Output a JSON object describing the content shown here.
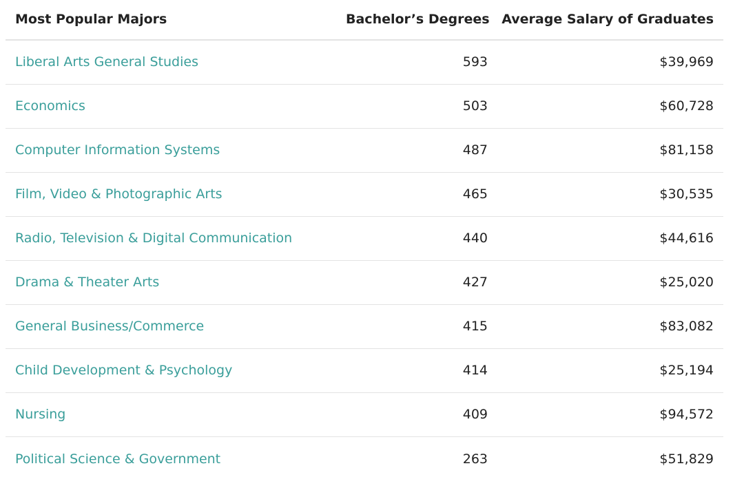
{
  "table": {
    "headers": [
      "Most Popular Majors",
      "Bachelor’s Degrees",
      "Average Salary of Graduates"
    ],
    "rows": [
      {
        "major": "Liberal Arts General Studies",
        "degrees": "593",
        "salary": "$39,969"
      },
      {
        "major": "Economics",
        "degrees": "503",
        "salary": "$60,728"
      },
      {
        "major": "Computer Information Systems",
        "degrees": "487",
        "salary": "$81,158"
      },
      {
        "major": "Film, Video & Photographic Arts",
        "degrees": "465",
        "salary": "$30,535"
      },
      {
        "major": "Radio, Television & Digital Communication",
        "degrees": "440",
        "salary": "$44,616"
      },
      {
        "major": "Drama & Theater Arts",
        "degrees": "427",
        "salary": "$25,020"
      },
      {
        "major": "General Business/Commerce",
        "degrees": "415",
        "salary": "$83,082"
      },
      {
        "major": "Child Development & Psychology",
        "degrees": "414",
        "salary": "$25,194"
      },
      {
        "major": "Nursing",
        "degrees": "409",
        "salary": "$94,572"
      },
      {
        "major": "Political Science & Government",
        "degrees": "263",
        "salary": "$51,829"
      }
    ]
  },
  "colors": {
    "link": "#3a9e9a",
    "text": "#222222",
    "divider": "#e3e3e3"
  }
}
